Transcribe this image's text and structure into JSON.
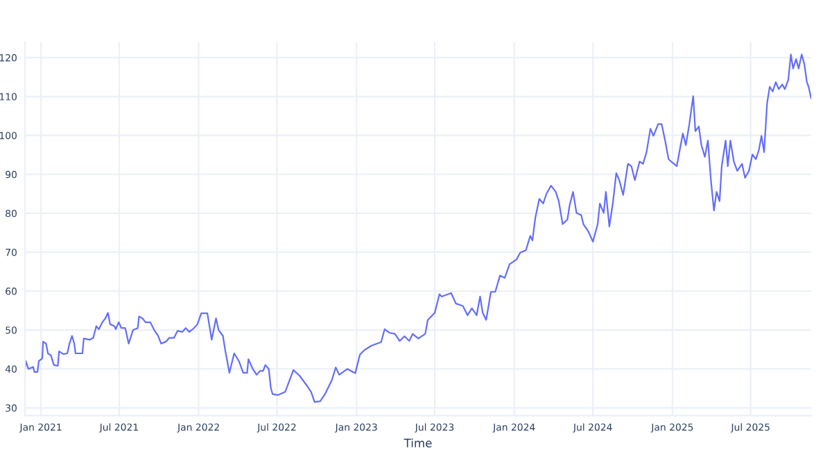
{
  "chart_data": {
    "type": "line",
    "xlabel": "Time",
    "xlim": [
      "2020-11-25",
      "2025-11-18"
    ],
    "ylim": [
      28,
      124
    ],
    "xticks": [
      {
        "value": "2021-01",
        "label": "Jan 2021"
      },
      {
        "value": "2021-07",
        "label": "Jul 2021"
      },
      {
        "value": "2022-01",
        "label": "Jan 2022"
      },
      {
        "value": "2022-07",
        "label": "Jul 2022"
      },
      {
        "value": "2023-01",
        "label": "Jan 2023"
      },
      {
        "value": "2023-07",
        "label": "Jul 2023"
      },
      {
        "value": "2024-01",
        "label": "Jan 2024"
      },
      {
        "value": "2024-07",
        "label": "Jul 2024"
      },
      {
        "value": "2025-01",
        "label": "Jan 2025"
      },
      {
        "value": "2025-07",
        "label": "Jul 2025"
      }
    ],
    "yticks": [
      30,
      40,
      50,
      60,
      70,
      80,
      90,
      100,
      110,
      120
    ],
    "grid": true,
    "marker": "none",
    "line_style": "solid",
    "series": [
      {
        "color": "#636efa",
        "x": [
          "2020-11-25",
          "2020-11-27",
          "2020-12-03",
          "2020-12-14",
          "2020-12-17",
          "2020-12-24",
          "2020-12-27",
          "2021-01-04",
          "2021-01-06",
          "2021-01-13",
          "2021-01-17",
          "2021-01-24",
          "2021-01-31",
          "2021-02-09",
          "2021-02-12",
          "2021-02-22",
          "2021-03-03",
          "2021-03-08",
          "2021-03-14",
          "2021-03-19",
          "2021-03-22",
          "2021-04-07",
          "2021-04-10",
          "2021-04-24",
          "2021-05-02",
          "2021-05-09",
          "2021-05-15",
          "2021-05-23",
          "2021-05-30",
          "2021-06-05",
          "2021-06-10",
          "2021-06-20",
          "2021-06-23",
          "2021-06-30",
          "2021-07-06",
          "2021-07-15",
          "2021-07-23",
          "2021-08-02",
          "2021-08-13",
          "2021-08-16",
          "2021-08-24",
          "2021-08-31",
          "2021-09-11",
          "2021-09-20",
          "2021-09-29",
          "2021-10-06",
          "2021-10-17",
          "2021-10-25",
          "2021-11-05",
          "2021-11-13",
          "2021-11-24",
          "2021-12-02",
          "2021-12-10",
          "2021-12-21",
          "2021-12-29",
          "2022-01-07",
          "2022-01-21",
          "2022-01-31",
          "2022-02-10",
          "2022-02-16",
          "2022-02-26",
          "2022-03-03",
          "2022-03-13",
          "2022-03-24",
          "2022-04-04",
          "2022-04-14",
          "2022-04-23",
          "2022-04-26",
          "2022-05-06",
          "2022-05-15",
          "2022-05-23",
          "2022-05-30",
          "2022-06-04",
          "2022-06-12",
          "2022-06-17",
          "2022-06-21",
          "2022-07-04",
          "2022-07-20",
          "2022-08-08",
          "2022-08-22",
          "2022-09-07",
          "2022-09-18",
          "2022-09-26",
          "2022-10-09",
          "2022-10-20",
          "2022-11-05",
          "2022-11-14",
          "2022-11-22",
          "2022-12-11",
          "2022-12-29",
          "2023-01-09",
          "2023-01-20",
          "2023-02-05",
          "2023-02-27",
          "2023-03-07",
          "2023-03-18",
          "2023-03-31",
          "2023-04-11",
          "2023-04-22",
          "2023-05-03",
          "2023-05-11",
          "2023-05-24",
          "2023-06-09",
          "2023-06-15",
          "2023-07-01",
          "2023-07-12",
          "2023-07-17",
          "2023-08-08",
          "2023-08-19",
          "2023-09-04",
          "2023-09-15",
          "2023-09-25",
          "2023-10-06",
          "2023-10-14",
          "2023-10-20",
          "2023-10-28",
          "2023-11-08",
          "2023-11-18",
          "2023-11-29",
          "2023-12-10",
          "2023-12-21",
          "2024-01-06",
          "2024-01-15",
          "2024-01-28",
          "2024-02-07",
          "2024-02-12",
          "2024-02-19",
          "2024-02-28",
          "2024-03-08",
          "2024-03-15",
          "2024-03-26",
          "2024-04-06",
          "2024-04-13",
          "2024-04-22",
          "2024-05-03",
          "2024-05-08",
          "2024-05-16",
          "2024-05-24",
          "2024-06-04",
          "2024-06-09",
          "2024-06-20",
          "2024-07-01",
          "2024-07-12",
          "2024-07-17",
          "2024-07-26",
          "2024-07-31",
          "2024-08-08",
          "2024-08-16",
          "2024-08-24",
          "2024-08-31",
          "2024-09-09",
          "2024-09-20",
          "2024-09-28",
          "2024-10-06",
          "2024-10-17",
          "2024-10-25",
          "2024-11-02",
          "2024-11-11",
          "2024-11-18",
          "2024-11-29",
          "2024-12-07",
          "2024-12-15",
          "2024-12-23",
          "2024-12-31",
          "2025-01-11",
          "2025-01-16",
          "2025-01-25",
          "2025-02-01",
          "2025-02-09",
          "2025-02-18",
          "2025-02-23",
          "2025-03-03",
          "2025-03-09",
          "2025-03-17",
          "2025-03-24",
          "2025-03-31",
          "2025-04-07",
          "2025-04-13",
          "2025-04-20",
          "2025-04-25",
          "2025-05-04",
          "2025-05-09",
          "2025-05-15",
          "2025-05-23",
          "2025-05-31",
          "2025-06-11",
          "2025-06-18",
          "2025-06-27",
          "2025-07-05",
          "2025-07-13",
          "2025-07-20",
          "2025-07-26",
          "2025-08-01",
          "2025-08-08",
          "2025-08-14",
          "2025-08-21",
          "2025-08-28",
          "2025-09-04",
          "2025-09-12",
          "2025-09-18",
          "2025-09-26",
          "2025-10-02",
          "2025-10-07",
          "2025-10-14",
          "2025-10-20",
          "2025-10-27",
          "2025-11-02",
          "2025-11-08",
          "2025-11-12",
          "2025-11-18"
        ],
        "values": [
          40,
          42,
          40,
          40.5,
          39.2,
          39.2,
          42,
          42.7,
          47,
          46.5,
          44,
          43.5,
          41,
          40.8,
          44.5,
          43.8,
          44,
          46.5,
          48.5,
          46.5,
          44,
          44,
          47.8,
          47.5,
          48,
          51,
          50.2,
          52,
          53,
          54.4,
          51.5,
          51,
          50.2,
          52,
          50.5,
          50.5,
          46.5,
          50,
          50.5,
          53.5,
          53,
          52,
          52,
          50,
          48.5,
          46.5,
          47,
          48,
          48,
          49.8,
          49.5,
          50.5,
          49.5,
          50.5,
          51.5,
          54.3,
          54.3,
          47.5,
          53,
          50,
          48.5,
          45,
          39,
          44,
          42,
          39,
          39,
          42.5,
          40,
          38.5,
          39.5,
          39.5,
          41,
          40,
          35,
          33.5,
          33.3,
          34.1,
          39.7,
          38.3,
          35.9,
          34.1,
          31.5,
          31.7,
          33.5,
          37.1,
          40.4,
          38.5,
          40,
          38.9,
          43.7,
          44.9,
          46,
          46.9,
          50.2,
          49.3,
          49,
          47.2,
          48.4,
          47.2,
          49,
          47.8,
          49,
          52.6,
          54.4,
          59.2,
          58.6,
          59.5,
          56.8,
          56.2,
          53.8,
          55.6,
          53.8,
          58.6,
          54.4,
          52.6,
          59.8,
          59.8,
          64,
          63.4,
          66.9,
          68.1,
          69.9,
          70.5,
          74.2,
          73,
          79,
          83.7,
          82.5,
          84.9,
          87.1,
          85.5,
          83.1,
          77.2,
          78.4,
          82,
          85.5,
          80.1,
          79.5,
          77.2,
          75.4,
          72.7,
          77.2,
          82.5,
          80.1,
          85.5,
          76.6,
          82.5,
          90.3,
          88.5,
          84.7,
          92.7,
          92.1,
          88.5,
          93.3,
          92.7,
          95.7,
          101.7,
          99.9,
          102.9,
          102.9,
          98.7,
          93.9,
          93.1,
          92.1,
          95.1,
          100.5,
          97.5,
          102.9,
          110.1,
          101.1,
          102.3,
          97.5,
          94.5,
          98.7,
          88.5,
          80.7,
          85.5,
          83.1,
          92.1,
          98.7,
          92.1,
          98.7,
          93.3,
          90.9,
          92.7,
          89.1,
          90.9,
          95.1,
          93.9,
          96.3,
          99.9,
          95.7,
          108.3,
          112.5,
          111.3,
          113.7,
          111.9,
          113.1,
          111.9,
          114.3,
          120.8,
          117.2,
          119.6,
          117.2,
          120.8,
          118.4,
          113.7,
          112.5,
          109.5
        ]
      }
    ]
  }
}
